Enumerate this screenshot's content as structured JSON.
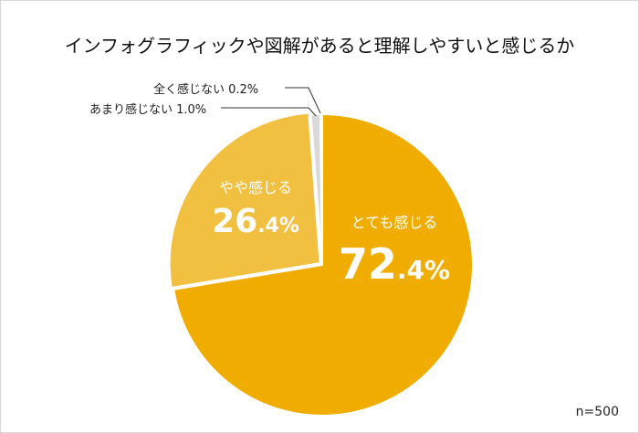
{
  "chart_data": {
    "type": "pie",
    "title": "インフォグラフィックや図解があると理解しやすいと感じるか",
    "categories": [
      "とても感じる",
      "やや感じる",
      "あまり感じない",
      "全く感じない"
    ],
    "values": [
      72.4,
      26.4,
      1.0,
      0.2
    ],
    "unit": "%",
    "colors": [
      "#f0ad00",
      "#f2c040",
      "#d9d9d9",
      "#bfbfbf"
    ],
    "sample_size": "n=500",
    "start_angle_deg": 0,
    "direction": "clockwise"
  },
  "title": "インフォグラフィックや図解があると理解しやすいと感じるか",
  "slices": [
    {
      "label": "とても感じる",
      "int": "72",
      "dec": ".4%"
    },
    {
      "label": "やや感じる",
      "int": "26",
      "dec": ".4%"
    }
  ],
  "callouts": [
    {
      "text": "全く感じない 0.2%"
    },
    {
      "text": "あまり感じない 1.0%"
    }
  ],
  "sample": "n=500"
}
